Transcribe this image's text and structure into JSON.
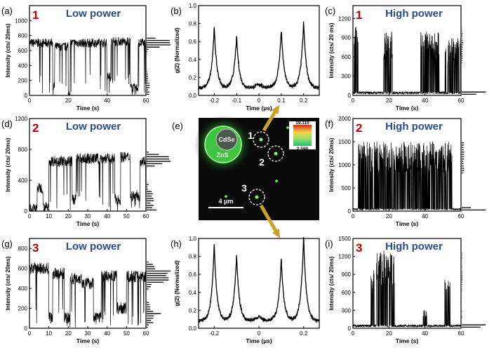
{
  "figure": {
    "panels": [
      {
        "id": "a",
        "letter": "(a)",
        "num": "1",
        "power": "Low power",
        "ylabel": "Intensity (cts/ 20ms)",
        "xlabel": "Time (s)",
        "yticks": [
          0,
          200,
          400,
          600,
          800,
          1000
        ],
        "xticks": [
          0,
          20,
          40,
          60
        ]
      },
      {
        "id": "b",
        "letter": "(b)",
        "ylabel": "g(2) (Normalized)",
        "xlabel": "Time (µs)",
        "yticks": [
          0.0,
          0.2,
          0.4,
          0.6,
          0.8,
          1.0
        ],
        "xticks": [
          -0.2,
          -0.1,
          0.0,
          0.1,
          0.2
        ]
      },
      {
        "id": "c",
        "letter": "(c)",
        "num": "1",
        "power": "High power",
        "ylabel": "Intensity (cts/ 20 ms)",
        "xlabel": "Time (s)",
        "yticks": [
          0,
          300,
          600,
          900,
          1200
        ],
        "xticks": [
          0,
          20,
          40,
          60
        ]
      },
      {
        "id": "d",
        "letter": "(d)",
        "num": "2",
        "power": "Low power",
        "ylabel": "Intensity (cts/ 20ms)",
        "xlabel": "Time (s)",
        "yticks": [
          0,
          400,
          800,
          1200
        ],
        "xticks": [
          0,
          10,
          20,
          30,
          40,
          50,
          60
        ]
      },
      {
        "id": "e",
        "letter": "(e)"
      },
      {
        "id": "f",
        "letter": "(f)",
        "num": "2",
        "power": "High power",
        "ylabel": "Intensity (cts/ 20ms)",
        "xlabel": "Time (s)",
        "yticks": [
          0,
          500,
          1000,
          1500,
          2000
        ],
        "xticks": [
          0,
          20,
          40,
          60
        ]
      },
      {
        "id": "g",
        "letter": "(g)",
        "num": "3",
        "power": "Low power",
        "ylabel": "Intensity (cts/ 20ms)",
        "xlabel": "Time (s)",
        "yticks": [
          0,
          200,
          400,
          600,
          800
        ],
        "xticks": [
          0,
          10,
          20,
          30,
          40,
          50,
          60
        ]
      },
      {
        "id": "h",
        "letter": "(h)",
        "ylabel": "g(2) (Normalized)",
        "xlabel": "Time (µs)",
        "yticks": [
          0.0,
          0.2,
          0.4,
          0.6,
          0.8,
          1.0
        ],
        "xticks": [
          -0.2,
          0.0,
          0.2
        ]
      },
      {
        "id": "i",
        "letter": "(i)",
        "num": "3",
        "power": "High power",
        "ylabel": "Intensity (cts/ 20ms)",
        "xlabel": "Time (s)",
        "yticks": [
          0,
          300,
          600,
          900,
          1200,
          1500
        ],
        "xticks": [
          0,
          20,
          40,
          60
        ]
      }
    ],
    "image": {
      "cdse": "CdSe",
      "zns": "ZnS",
      "scale": "4 μm",
      "cb_max": "19.110",
      "cb_min": "2.590",
      "labels": [
        "1",
        "2",
        "3"
      ]
    },
    "colors": {
      "number": "#c00000",
      "power": "#2a4b8d",
      "arrow": "#c9a227",
      "line": "#000000"
    }
  },
  "chart_data": [
    {
      "type": "line",
      "panel": "a",
      "ylim": [
        0,
        1200
      ],
      "xlim": [
        0,
        60
      ],
      "segments": [
        [
          0,
          12,
          700
        ],
        [
          12,
          13,
          120
        ],
        [
          13,
          20,
          650
        ],
        [
          20,
          21,
          30
        ],
        [
          21,
          40,
          700
        ],
        [
          40,
          42,
          250
        ],
        [
          42,
          52,
          720
        ],
        [
          52,
          56,
          100
        ],
        [
          56,
          60,
          700
        ]
      ],
      "noise": 120
    },
    {
      "type": "line",
      "panel": "b",
      "ylim": [
        0,
        1.0
      ],
      "xlim": [
        -0.27,
        0.27
      ],
      "peaks": [
        [
          -0.2,
          0.74
        ],
        [
          -0.1,
          0.64
        ],
        [
          0.1,
          0.72
        ],
        [
          0.2,
          0.8
        ]
      ],
      "center": [
        0,
        0.05
      ]
    },
    {
      "type": "line",
      "panel": "c",
      "ylim": [
        0,
        1400
      ],
      "xlim": [
        0,
        60
      ],
      "bursts": [
        [
          0.5,
          3,
          1100
        ],
        [
          17,
          22,
          1000
        ],
        [
          37,
          48,
          1000
        ],
        [
          51,
          60,
          900
        ]
      ]
    },
    {
      "type": "line",
      "panel": "d",
      "ylim": [
        0,
        1200
      ],
      "xlim": [
        0,
        60
      ],
      "segments": [
        [
          0,
          4,
          30
        ],
        [
          4,
          7,
          300
        ],
        [
          7,
          10,
          50
        ],
        [
          10,
          22,
          650
        ],
        [
          22,
          24,
          150
        ],
        [
          24,
          44,
          680
        ],
        [
          44,
          47,
          150
        ],
        [
          47,
          52,
          700
        ],
        [
          52,
          57,
          200
        ],
        [
          57,
          60,
          650
        ]
      ],
      "noise": 140
    },
    {
      "type": "line",
      "panel": "f",
      "ylim": [
        0,
        2000
      ],
      "xlim": [
        0,
        60
      ],
      "bursts": [
        [
          3,
          55,
          1500
        ]
      ]
    },
    {
      "type": "line",
      "panel": "g",
      "ylim": [
        0,
        900
      ],
      "xlim": [
        0,
        60
      ],
      "segments": [
        [
          0,
          10,
          600
        ],
        [
          10,
          12,
          120
        ],
        [
          12,
          18,
          550
        ],
        [
          18,
          21,
          100
        ],
        [
          21,
          27,
          500
        ],
        [
          27,
          33,
          450
        ],
        [
          33,
          37,
          120
        ],
        [
          37,
          45,
          520
        ],
        [
          45,
          50,
          200
        ],
        [
          50,
          60,
          520
        ]
      ],
      "noise": 120
    },
    {
      "type": "line",
      "panel": "h",
      "ylim": [
        0,
        1.0
      ],
      "xlim": [
        -0.27,
        0.27
      ],
      "peaks": [
        [
          -0.2,
          0.92
        ],
        [
          -0.1,
          0.8
        ],
        [
          0.1,
          0.76
        ],
        [
          0.2,
          1.0
        ]
      ],
      "center": [
        0,
        0.05
      ]
    },
    {
      "type": "line",
      "panel": "i",
      "ylim": [
        0,
        1500
      ],
      "xlim": [
        0,
        60
      ],
      "bursts": [
        [
          10,
          12,
          1000
        ],
        [
          13,
          23,
          1300
        ],
        [
          39,
          41,
          320
        ],
        [
          51,
          54,
          820
        ]
      ]
    }
  ]
}
